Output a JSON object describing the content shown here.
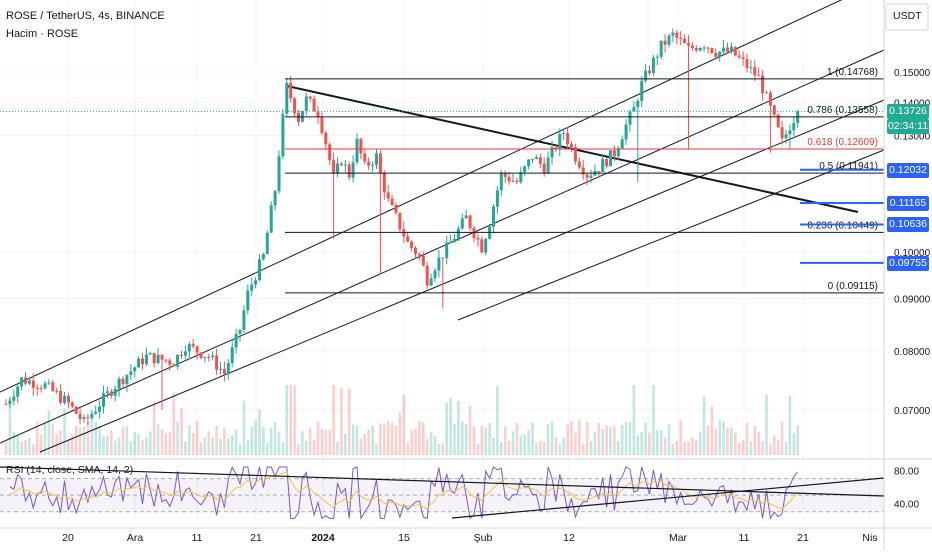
{
  "header": {
    "symbol_line": "ROSE / TetherUS, 4s, BINANCE",
    "volume_label": "Hacim · ROSE",
    "currency": "USDT"
  },
  "colors": {
    "up": "#26a69a",
    "down": "#ef5350",
    "rsi_line": "#7e57c2",
    "rsi_ma": "#f5c342",
    "fib_red": "#e53935",
    "price_blue": "#2962ff",
    "last_price": "#22ab94"
  },
  "chart_data": {
    "type": "candlestick",
    "title": "ROSE / TetherUS, 4s, BINANCE",
    "currency": "USDT",
    "y_axis_ticks": [
      "0.15000",
      "0.14000",
      "0.13000",
      "0.10000",
      "0.09000",
      "0.08000",
      "0.07000"
    ],
    "x_axis_ticks": [
      "20",
      "Ara",
      "11",
      "21",
      "2024",
      "15",
      "Şub",
      "12",
      "Mar",
      "11",
      "21",
      "Nis"
    ],
    "ylim": [
      0.062,
      0.163
    ],
    "scale": "log",
    "fibonacci": [
      {
        "label": "1 (0.14768)",
        "value": 0.14768
      },
      {
        "label": "0.786 (0.13558)",
        "value": 0.13558
      },
      {
        "label": "0.618 (0.12609)",
        "value": 0.12609
      },
      {
        "label": "0.5 (0.11941)",
        "value": 0.11941
      },
      {
        "label": "0.236 (0.10449)",
        "value": 0.10449
      },
      {
        "label": "0 (0.09115)",
        "value": 0.09115
      }
    ],
    "price_labels": [
      {
        "label": "0.13726",
        "value": 0.13726,
        "kind": "last"
      },
      {
        "label": "02:34:11",
        "value": 0.1343,
        "kind": "countdown"
      },
      {
        "label": "0.12032",
        "value": 0.12032,
        "kind": "level"
      },
      {
        "label": "0.11165",
        "value": 0.11165,
        "kind": "level"
      },
      {
        "label": "0.10636",
        "value": 0.10636,
        "kind": "level"
      },
      {
        "label": "0.09755",
        "value": 0.09755,
        "kind": "level"
      }
    ],
    "price_path": [
      [
        0,
        0.071
      ],
      [
        4,
        0.075
      ],
      [
        10,
        0.074
      ],
      [
        16,
        0.071
      ],
      [
        20,
        0.068
      ],
      [
        28,
        0.074
      ],
      [
        36,
        0.079
      ],
      [
        43,
        0.078
      ],
      [
        46,
        0.081
      ],
      [
        52,
        0.079
      ],
      [
        56,
        0.076
      ],
      [
        60,
        0.084
      ],
      [
        62,
        0.091
      ],
      [
        66,
        0.099
      ],
      [
        69,
        0.115
      ],
      [
        72,
        0.145
      ],
      [
        75,
        0.135
      ],
      [
        77,
        0.141
      ],
      [
        80,
        0.137
      ],
      [
        82,
        0.128
      ],
      [
        84,
        0.118
      ],
      [
        86,
        0.123
      ],
      [
        88,
        0.119
      ],
      [
        90,
        0.128
      ],
      [
        92,
        0.121
      ],
      [
        95,
        0.124
      ],
      [
        96,
        0.119
      ],
      [
        98,
        0.112
      ],
      [
        100,
        0.108
      ],
      [
        103,
        0.102
      ],
      [
        106,
        0.099
      ],
      [
        108,
        0.094
      ],
      [
        110,
        0.097
      ],
      [
        114,
        0.102
      ],
      [
        118,
        0.108
      ],
      [
        122,
        0.101
      ],
      [
        124,
        0.107
      ],
      [
        127,
        0.119
      ],
      [
        131,
        0.117
      ],
      [
        135,
        0.124
      ],
      [
        138,
        0.121
      ],
      [
        143,
        0.131
      ],
      [
        146,
        0.124
      ],
      [
        149,
        0.119
      ],
      [
        152,
        0.121
      ],
      [
        156,
        0.125
      ],
      [
        159,
        0.133
      ],
      [
        161,
        0.138
      ],
      [
        163,
        0.146
      ],
      [
        165,
        0.151
      ],
      [
        168,
        0.159
      ],
      [
        171,
        0.163
      ],
      [
        175,
        0.158
      ],
      [
        179,
        0.16
      ],
      [
        182,
        0.157
      ],
      [
        186,
        0.157
      ],
      [
        190,
        0.152
      ],
      [
        193,
        0.148
      ],
      [
        196,
        0.138
      ],
      [
        199,
        0.128
      ],
      [
        201,
        0.133
      ],
      [
        203,
        0.13726
      ]
    ],
    "rsi": {
      "label": "RSI (14, close, SMA, 14, 2)",
      "ticks": [
        "80.00",
        "40.00"
      ],
      "ylim": [
        20,
        90
      ]
    }
  }
}
